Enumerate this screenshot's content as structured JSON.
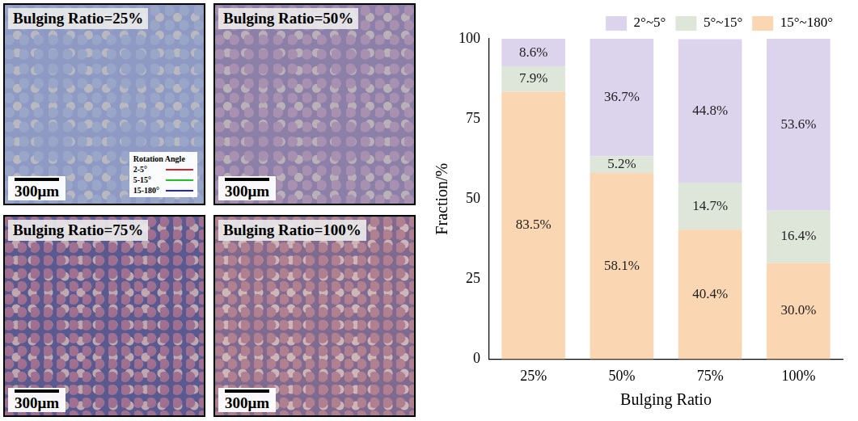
{
  "chart_data": {
    "type": "bar",
    "stacked": true,
    "data_labels": true,
    "grid": false,
    "legend": "top",
    "x_label": "Bulging Ratio",
    "y_label": "Fraction/%",
    "categories": [
      "25%",
      "50%",
      "75%",
      "100%"
    ],
    "ylim": [
      0,
      100
    ],
    "yticks": [
      0,
      25,
      50,
      75,
      100
    ],
    "series": [
      {
        "name": "2°~5°",
        "color": "#dcd3ec",
        "values": [
          8.6,
          36.7,
          44.8,
          53.6
        ],
        "value_labels": [
          "8.6%",
          "36.7%",
          "44.8%",
          "53.6%"
        ]
      },
      {
        "name": "5°~15°",
        "color": "#dee6da",
        "values": [
          7.9,
          5.2,
          14.7,
          16.4
        ],
        "value_labels": [
          "7.9%",
          "5.2%",
          "14.7%",
          "16.4%"
        ]
      },
      {
        "name": "15°~180°",
        "color": "#fbd6b2",
        "values": [
          83.5,
          58.1,
          40.4,
          30.0
        ],
        "value_labels": [
          "83.5%",
          "58.1%",
          "40.4%",
          "30.0%"
        ]
      }
    ]
  },
  "micrographs": {
    "panels": [
      {
        "title": "Bulging Ratio=25%",
        "scale_bar": "300μm"
      },
      {
        "title": "Bulging Ratio=50%",
        "scale_bar": "300μm"
      },
      {
        "title": "Bulging Ratio=75%",
        "scale_bar": "300μm"
      },
      {
        "title": "Bulging Ratio=100%",
        "scale_bar": "300μm"
      }
    ],
    "legend": {
      "title": "Rotation Angle",
      "items": [
        {
          "label": "2-5°",
          "color": "#e02020"
        },
        {
          "label": "5-15°",
          "color": "#20c020"
        },
        {
          "label": "15-180°",
          "color": "#2020e0"
        }
      ]
    }
  }
}
